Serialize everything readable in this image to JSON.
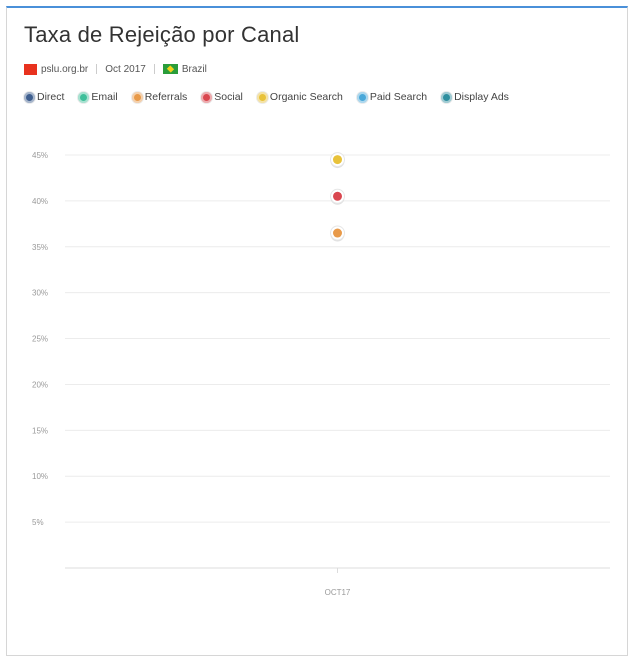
{
  "header": {
    "title": "Taxa de Rejeição por Canal",
    "site": "pslu.org.br",
    "period": "Oct 2017",
    "country": "Brazil"
  },
  "colors": {
    "accent": "#4a90d9",
    "grid": "#ececec"
  },
  "chart_data": {
    "type": "scatter",
    "title": "Taxa de Rejeição por Canal",
    "categories": [
      "OCT17"
    ],
    "y_tick_labels": [
      "5%",
      "10%",
      "15%",
      "20%",
      "25%",
      "30%",
      "35%",
      "40%",
      "45%"
    ],
    "ylim": [
      0,
      45
    ],
    "grid": true,
    "legend_position": "top",
    "series": [
      {
        "name": "Direct",
        "color": "#3f5f8f",
        "values": [
          null
        ]
      },
      {
        "name": "Email",
        "color": "#3fbf9a",
        "values": [
          null
        ]
      },
      {
        "name": "Referrals",
        "color": "#e89a4a",
        "values": [
          36.5
        ]
      },
      {
        "name": "Social",
        "color": "#d9474f",
        "values": [
          40.5
        ]
      },
      {
        "name": "Organic Search",
        "color": "#e8c23a",
        "values": [
          44.5
        ]
      },
      {
        "name": "Paid Search",
        "color": "#4aa8d9",
        "values": [
          null
        ]
      },
      {
        "name": "Display Ads",
        "color": "#2f8f9f",
        "values": [
          null
        ]
      }
    ]
  }
}
